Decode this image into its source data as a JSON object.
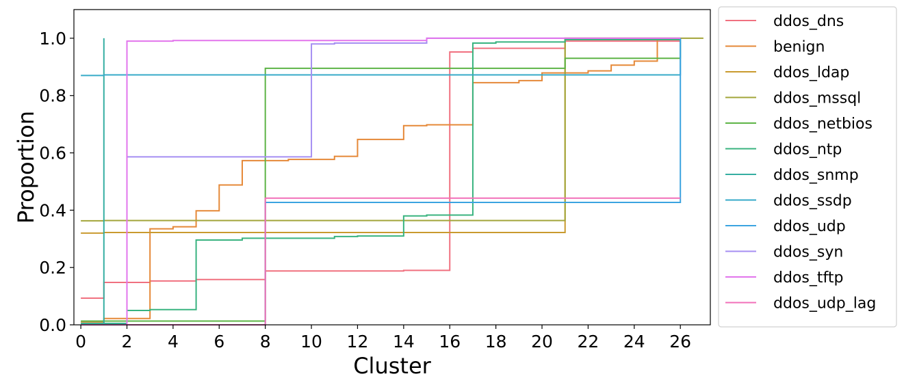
{
  "chart_data": {
    "type": "line",
    "step": true,
    "xlabel": "Cluster",
    "ylabel": "Proportion",
    "xlim": [
      -0.3,
      27.3
    ],
    "ylim": [
      0,
      1.1
    ],
    "xticks": [
      0,
      2,
      4,
      6,
      8,
      10,
      12,
      14,
      16,
      18,
      20,
      22,
      24,
      26
    ],
    "yticks": [
      0.0,
      0.2,
      0.4,
      0.6,
      0.8,
      1.0
    ],
    "ytick_labels": [
      "0.0",
      "0.2",
      "0.4",
      "0.6",
      "0.8",
      "1.0"
    ],
    "grid": false,
    "legend_position": "outside-right",
    "series": [
      {
        "name": "ddos_dns",
        "color": "#f0707f",
        "points": [
          [
            0,
            0.093
          ],
          [
            1,
            0.148
          ],
          [
            3,
            0.153
          ],
          [
            5,
            0.158
          ],
          [
            8,
            0.188
          ],
          [
            14,
            0.19
          ],
          [
            16,
            0.952
          ],
          [
            17,
            0.965
          ],
          [
            21,
            0.99
          ],
          [
            26,
            0.99
          ]
        ]
      },
      {
        "name": "benign",
        "color": "#e58837",
        "points": [
          [
            0,
            0.01
          ],
          [
            1,
            0.022
          ],
          [
            3,
            0.335
          ],
          [
            4,
            0.342
          ],
          [
            5,
            0.398
          ],
          [
            6,
            0.488
          ],
          [
            7,
            0.573
          ],
          [
            9,
            0.577
          ],
          [
            11,
            0.588
          ],
          [
            12,
            0.647
          ],
          [
            14,
            0.695
          ],
          [
            15,
            0.698
          ],
          [
            17,
            0.845
          ],
          [
            19,
            0.852
          ],
          [
            20,
            0.879
          ],
          [
            22,
            0.886
          ],
          [
            23,
            0.906
          ],
          [
            24,
            0.92
          ],
          [
            25,
            0.999
          ],
          [
            26,
            0.999
          ]
        ]
      },
      {
        "name": "ddos_ldap",
        "color": "#c99a2e",
        "points": [
          [
            0,
            0.32
          ],
          [
            1,
            0.322
          ],
          [
            21,
            1.0
          ],
          [
            26,
            1.0
          ]
        ]
      },
      {
        "name": "ddos_mssql",
        "color": "#a2a438",
        "points": [
          [
            0,
            0.363
          ],
          [
            1,
            0.364
          ],
          [
            21,
            1.0
          ],
          [
            27,
            1.0
          ]
        ]
      },
      {
        "name": "ddos_netbios",
        "color": "#5db446",
        "points": [
          [
            0,
            0.013
          ],
          [
            8,
            0.895
          ],
          [
            21,
            0.93
          ],
          [
            26,
            1.0
          ]
        ]
      },
      {
        "name": "ddos_ntp",
        "color": "#38b37f",
        "points": [
          [
            0,
            0.005
          ],
          [
            2,
            0.05
          ],
          [
            3,
            0.053
          ],
          [
            5,
            0.296
          ],
          [
            7,
            0.302
          ],
          [
            11,
            0.308
          ],
          [
            12,
            0.31
          ],
          [
            14,
            0.38
          ],
          [
            15,
            0.383
          ],
          [
            17,
            0.983
          ],
          [
            18,
            0.987
          ],
          [
            21,
            0.995
          ],
          [
            26,
            0.995
          ]
        ]
      },
      {
        "name": "ddos_snmp",
        "color": "#35aea1",
        "points": [
          [
            0,
            0.003
          ],
          [
            1,
            1.0
          ],
          [
            1,
            0.003
          ],
          [
            2,
            0.003
          ]
        ]
      },
      {
        "name": "ddos_ssdp",
        "color": "#36aac8",
        "points": [
          [
            0,
            0.87
          ],
          [
            1,
            0.872
          ],
          [
            26,
            1.0
          ]
        ]
      },
      {
        "name": "ddos_udp",
        "color": "#3ba3e0",
        "points": [
          [
            0,
            0.0
          ],
          [
            8,
            0.427
          ],
          [
            26,
            0.427
          ],
          [
            26,
            1.0
          ]
        ]
      },
      {
        "name": "ddos_syn",
        "color": "#a58ef2",
        "points": [
          [
            0,
            0.0
          ],
          [
            2,
            0.586
          ],
          [
            10,
            0.98
          ],
          [
            11,
            0.983
          ],
          [
            15,
            1.0
          ],
          [
            26,
            1.0
          ]
        ]
      },
      {
        "name": "ddos_tftp",
        "color": "#e274ec",
        "points": [
          [
            0,
            0.0
          ],
          [
            2,
            0.99
          ],
          [
            4,
            0.992
          ],
          [
            15,
            1.0
          ],
          [
            26,
            1.0
          ]
        ]
      },
      {
        "name": "ddos_udp_lag",
        "color": "#f26fb8",
        "points": [
          [
            0,
            0.0
          ],
          [
            8,
            0.442
          ],
          [
            26,
            0.442
          ]
        ]
      }
    ]
  }
}
